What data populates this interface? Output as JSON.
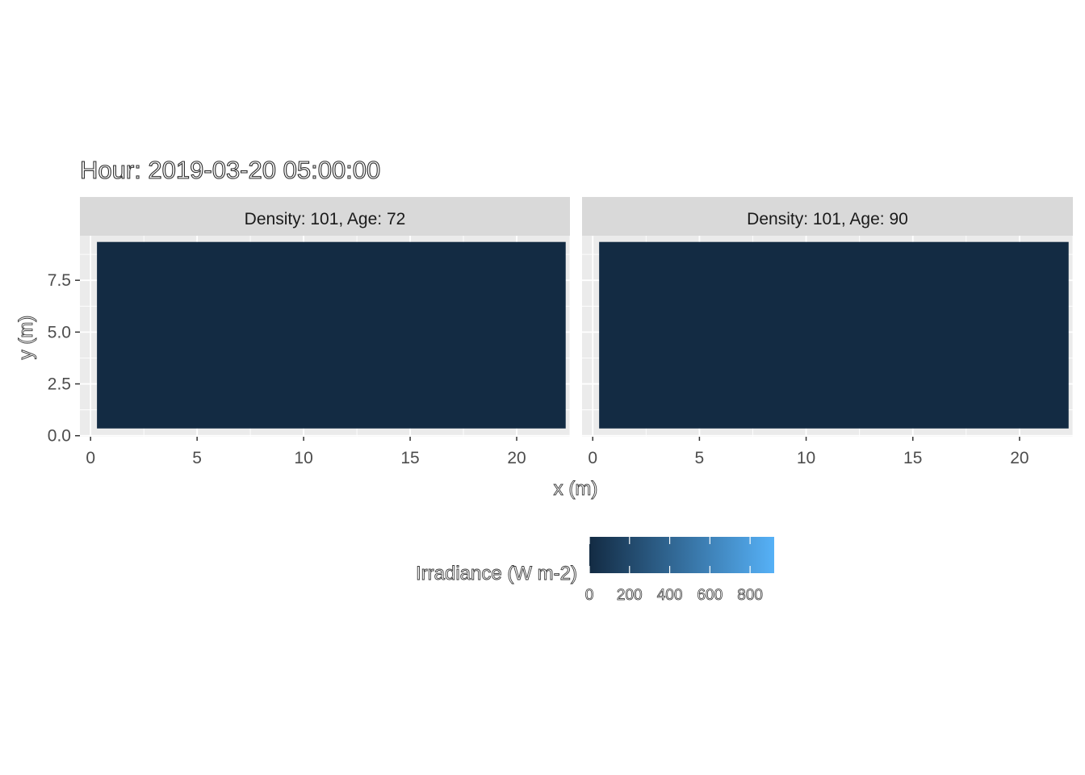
{
  "chart_data": {
    "type": "heatmap",
    "title": "Hour: 2019-03-20 05:00:00",
    "xlabel": "x (m)",
    "ylabel": "y (m)",
    "xlim": [
      -0.5,
      22.5
    ],
    "ylim": [
      -0.05,
      9.65
    ],
    "x_ticks": [
      0,
      5,
      10,
      15,
      20
    ],
    "y_ticks": [
      0.0,
      2.5,
      5.0,
      7.5
    ],
    "x_tick_labels": [
      "0",
      "5",
      "10",
      "15",
      "20"
    ],
    "y_tick_labels": [
      "0.0",
      "2.5",
      "5.0",
      "7.5"
    ],
    "grid": true,
    "panels": [
      {
        "strip": "Density: 101, Age: 72",
        "tiles": [
          {
            "x_range": [
              0.3,
              22.3
            ],
            "y_range": [
              0.35,
              9.35
            ],
            "value": 0
          }
        ]
      },
      {
        "strip": "Density: 101, Age: 90",
        "tiles": [
          {
            "x_range": [
              0.3,
              22.3
            ],
            "y_range": [
              0.35,
              9.35
            ],
            "value": 0
          }
        ]
      }
    ],
    "legend": {
      "title": "Irradiance (W m-2)",
      "position": "bottom",
      "range": [
        0,
        920
      ],
      "ticks": [
        0,
        200,
        400,
        600,
        800
      ],
      "tick_labels": [
        "0",
        "200",
        "400",
        "600",
        "800"
      ],
      "low_color": "#132B43",
      "high_color": "#56B1F7"
    },
    "colors": {
      "panel_background": "#EBEBEB",
      "grid": "#FFFFFF",
      "strip_background": "#D9D9D9"
    }
  }
}
